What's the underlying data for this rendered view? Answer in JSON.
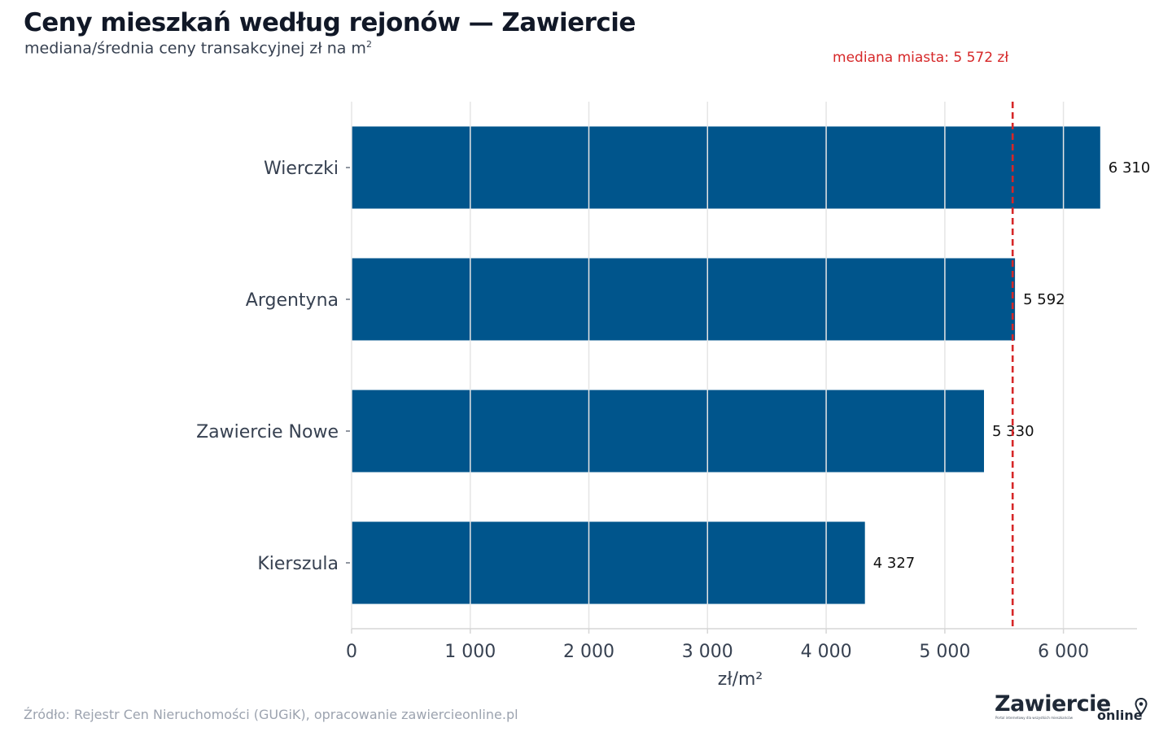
{
  "header": {
    "title": "Ceny mieszkań według rejonów — Zawiercie",
    "subtitle": "mediana/średnia ceny transakcyjnej zł na m",
    "subtitle_superscript": "2"
  },
  "footer": {
    "source": "Źródło: Rejestr Cen Nieruchomości (GUGiK), opracowanie zawiercieonline.pl",
    "logo_main": "Zawiercie",
    "logo_sub": "online",
    "logo_tagline": "Portal internetowy dla wszystkich mieszkańców"
  },
  "chart_data": {
    "type": "bar",
    "orientation": "horizontal",
    "categories": [
      "Wierczki",
      "Argentyna",
      "Zawiercie Nowe",
      "Kierszula"
    ],
    "values": [
      6310,
      5592,
      5330,
      4327
    ],
    "value_labels": [
      "6 310",
      "5 592",
      "5 330",
      "4 327"
    ],
    "xlabel": "zł/m²",
    "ylabel": "",
    "xlim": [
      0,
      6620
    ],
    "xticks": [
      0,
      1000,
      2000,
      3000,
      4000,
      5000,
      6000
    ],
    "xtick_labels": [
      "0",
      "1 000",
      "2 000",
      "3 000",
      "4 000",
      "5 000",
      "6 000"
    ],
    "reference_line": {
      "value": 5572,
      "label": "mediana miasta: 5 572 zł",
      "style": "dashed"
    },
    "grid": "vertical",
    "colors": {
      "bar": "#00558c",
      "reference": "#d62728",
      "grid": "#e5e5e5",
      "axis": "#d6d6d6"
    }
  }
}
